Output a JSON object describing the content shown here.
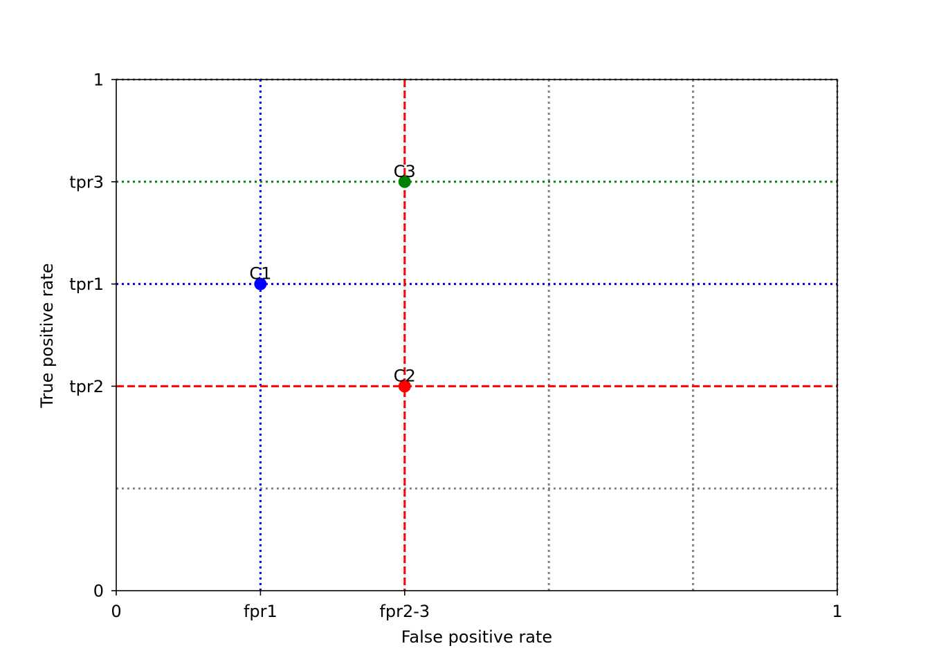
{
  "chart_data": {
    "type": "scatter",
    "xlabel": "False positive rate",
    "ylabel": "True positive rate",
    "xlim": [
      0,
      1
    ],
    "ylim": [
      0,
      1
    ],
    "x_ticks": [
      {
        "value": 0,
        "label": "0"
      },
      {
        "value": 0.2,
        "label": "fpr1"
      },
      {
        "value": 0.4,
        "label": "fpr2-3"
      },
      {
        "value": 1,
        "label": "1"
      }
    ],
    "y_ticks": [
      {
        "value": 0,
        "label": "0"
      },
      {
        "value": 0.4,
        "label": "tpr2"
      },
      {
        "value": 0.6,
        "label": "tpr1"
      },
      {
        "value": 0.8,
        "label": "tpr3"
      },
      {
        "value": 1,
        "label": "1"
      }
    ],
    "points": [
      {
        "label": "C1",
        "x": 0.2,
        "y": 0.6,
        "color": "#0000ff"
      },
      {
        "label": "C2",
        "x": 0.4,
        "y": 0.4,
        "color": "#ff0000"
      },
      {
        "label": "C3",
        "x": 0.4,
        "y": 0.8,
        "color": "#008000"
      }
    ],
    "grid": {
      "gray_vertical_x": [
        0.6,
        0.8,
        1.0
      ],
      "gray_horizontal_y": [
        0.2,
        1.0
      ],
      "gray_color": "#808080"
    },
    "reference_lines": [
      {
        "orientation": "vertical",
        "value": 0.2,
        "color": "#0000ff",
        "style": "dotted"
      },
      {
        "orientation": "horizontal",
        "value": 0.6,
        "color": "#0000ff",
        "style": "dotted"
      },
      {
        "orientation": "vertical",
        "value": 0.4,
        "color": "#008000",
        "style": "dotted"
      },
      {
        "orientation": "horizontal",
        "value": 0.8,
        "color": "#008000",
        "style": "dotted"
      },
      {
        "orientation": "vertical",
        "value": 0.4,
        "color": "#ff0000",
        "style": "dashed"
      },
      {
        "orientation": "horizontal",
        "value": 0.4,
        "color": "#ff0000",
        "style": "dashed"
      }
    ]
  }
}
